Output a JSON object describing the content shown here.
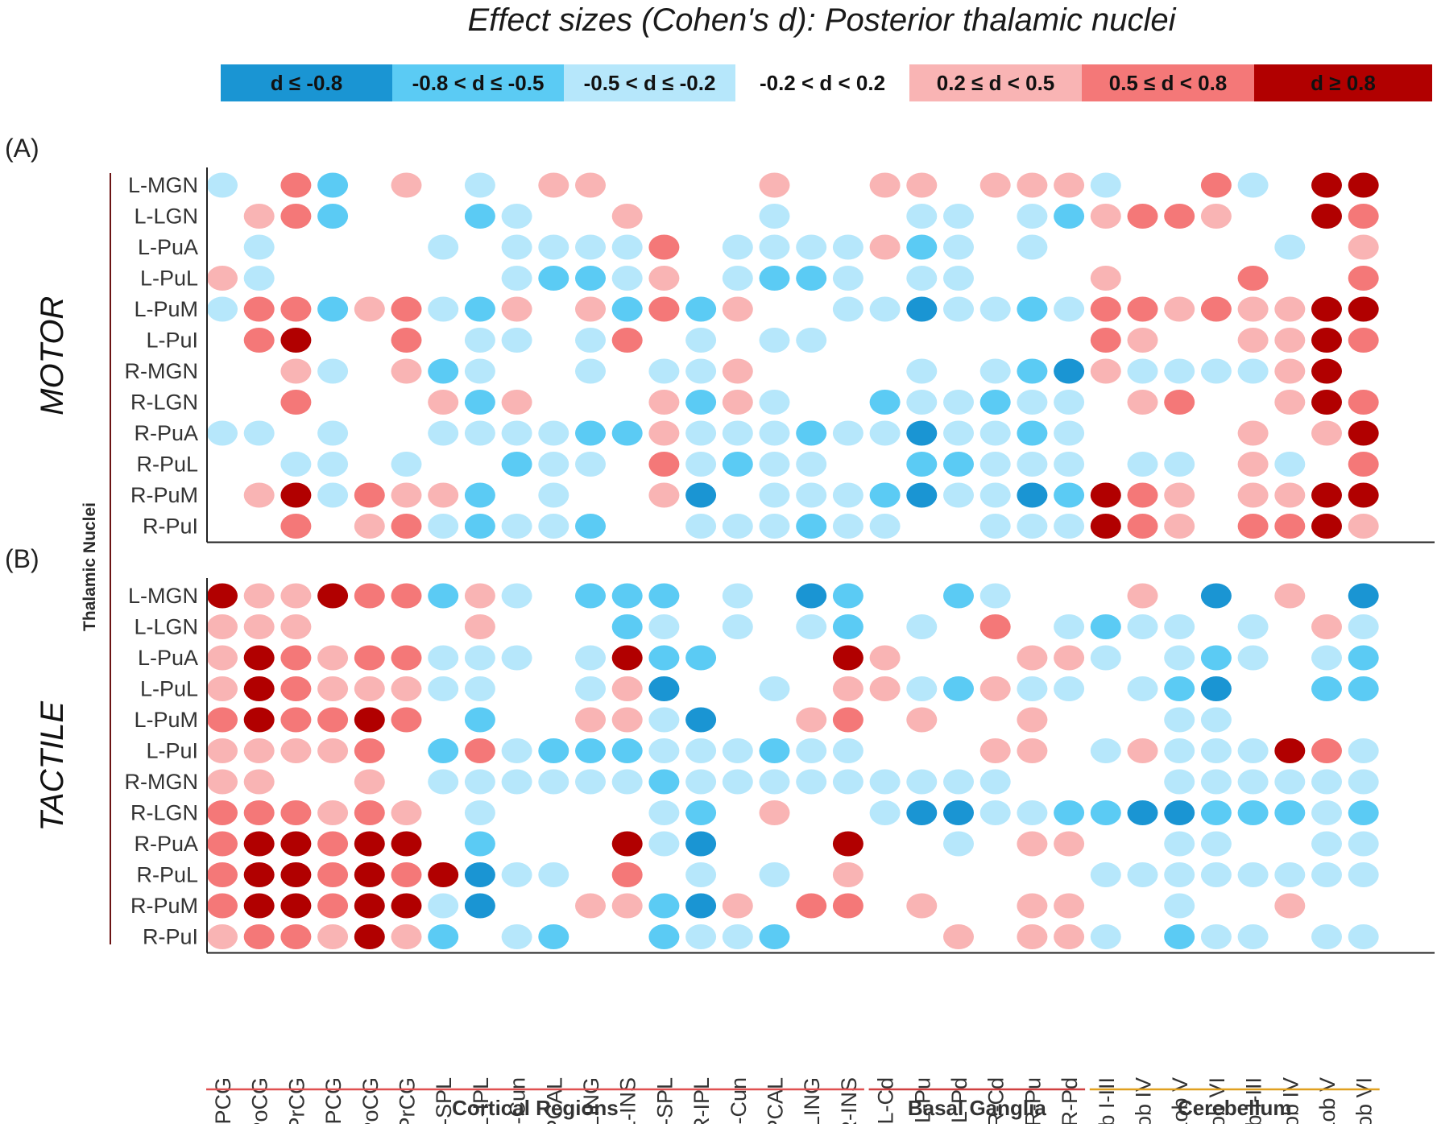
{
  "chart_data": {
    "type": "heatmap",
    "title": "Effect sizes (Cohen's d): Posterior thalamic nuclei",
    "y_axis_label": "Thalamic Nuclei",
    "legend": {
      "bins": [
        {
          "level": -3,
          "label": "d ≤ -0.8",
          "color": "#1a95d3"
        },
        {
          "level": -2,
          "label": "-0.8 < d ≤ -0.5",
          "color": "#5bcbf4"
        },
        {
          "level": -1,
          "label": "-0.5 < d ≤ -0.2",
          "color": "#b6e7fb"
        },
        {
          "level": 0,
          "label": "-0.2 < d < 0.2",
          "color": "#ffffff"
        },
        {
          "level": 1,
          "label": "0.2 ≤ d < 0.5",
          "color": "#f9b4b4"
        },
        {
          "level": 2,
          "label": "0.5 ≤ d < 0.8",
          "color": "#f47878"
        },
        {
          "level": 3,
          "label": "d ≥ 0.8",
          "color": "#b10000"
        }
      ]
    },
    "rows": [
      "L-MGN",
      "L-LGN",
      "L-PuA",
      "L-PuL",
      "L-PuM",
      "L-PuI",
      "R-MGN",
      "R-LGN",
      "R-PuA",
      "R-PuL",
      "R-PuM",
      "R-PuI"
    ],
    "columns": [
      "L-PCG",
      "L-PoCG",
      "L-PrCG",
      "R-PCG",
      "R-PoCG",
      "R-PrCG",
      "L-SPL",
      "L-IPL",
      "L-Cun",
      "L-PCAL",
      "L-LING",
      "L-INS",
      "R-SPL",
      "R-IPL",
      "R-Cun",
      "R-PCAL",
      "R-LING",
      "R-INS",
      "L-Cd",
      "L-Pu",
      "L-Pd",
      "R-Cd",
      "R-Pu",
      "R-Pd",
      "L-Lob I-III",
      "L-Lob IV",
      "L-Lob V",
      "L-Lob VI",
      "R-Lob I-III",
      "R-Lob IV",
      "R-Lob V",
      "R-Lob VI"
    ],
    "column_groups": [
      {
        "label": "Cortical Regions",
        "start": 0,
        "end": 17,
        "color": "#e05050"
      },
      {
        "label": "Basal Ganglia",
        "start": 18,
        "end": 23,
        "color": "#d04040"
      },
      {
        "label": "Cerebellum",
        "start": 24,
        "end": 31,
        "color": "#e0a020"
      }
    ],
    "panels": [
      {
        "tag": "(A)",
        "condition": "MOTOR",
        "levels": [
          [
            -1,
            0,
            2,
            -2,
            0,
            1,
            0,
            -1,
            0,
            1,
            1,
            0,
            0,
            0,
            0,
            1,
            0,
            0,
            1,
            1,
            0,
            1,
            1,
            1,
            -1,
            0,
            0,
            2,
            -1,
            0,
            3,
            3
          ],
          [
            0,
            1,
            2,
            -2,
            0,
            0,
            0,
            -2,
            -1,
            0,
            0,
            1,
            0,
            0,
            0,
            -1,
            0,
            0,
            0,
            -1,
            -1,
            0,
            -1,
            -2,
            1,
            2,
            2,
            1,
            0,
            0,
            3,
            2
          ],
          [
            0,
            -1,
            0,
            0,
            0,
            0,
            -1,
            0,
            -1,
            -1,
            -1,
            -1,
            2,
            0,
            -1,
            -1,
            -1,
            -1,
            1,
            -2,
            -1,
            0,
            -1,
            0,
            0,
            0,
            0,
            0,
            0,
            -1,
            0,
            1
          ],
          [
            1,
            -1,
            0,
            0,
            0,
            0,
            0,
            0,
            -1,
            -2,
            -2,
            -1,
            1,
            0,
            -1,
            -2,
            -2,
            -1,
            0,
            -1,
            -1,
            0,
            0,
            0,
            1,
            0,
            0,
            0,
            2,
            0,
            0,
            2
          ],
          [
            -1,
            2,
            2,
            -2,
            1,
            2,
            -1,
            -2,
            1,
            0,
            1,
            -2,
            2,
            -2,
            1,
            0,
            0,
            -1,
            -1,
            -3,
            -1,
            -1,
            -2,
            -1,
            2,
            2,
            1,
            2,
            1,
            1,
            3,
            3
          ],
          [
            0,
            2,
            3,
            0,
            0,
            2,
            0,
            -1,
            -1,
            0,
            -1,
            2,
            0,
            -1,
            0,
            -1,
            -1,
            0,
            0,
            0,
            0,
            0,
            0,
            0,
            2,
            1,
            0,
            0,
            1,
            1,
            3,
            2
          ],
          [
            0,
            0,
            1,
            -1,
            0,
            1,
            -2,
            -1,
            0,
            0,
            -1,
            0,
            -1,
            -1,
            1,
            0,
            0,
            0,
            0,
            -1,
            0,
            -1,
            -2,
            -3,
            1,
            -1,
            -1,
            -1,
            -1,
            1,
            3,
            0
          ],
          [
            0,
            0,
            2,
            0,
            0,
            0,
            1,
            -2,
            1,
            0,
            0,
            0,
            1,
            -2,
            1,
            -1,
            0,
            0,
            -2,
            -1,
            -1,
            -2,
            -1,
            -1,
            0,
            1,
            2,
            0,
            0,
            1,
            3,
            2
          ],
          [
            -1,
            -1,
            0,
            -1,
            0,
            0,
            -1,
            -1,
            -1,
            -1,
            -2,
            -2,
            1,
            -1,
            -1,
            -1,
            -2,
            -1,
            -1,
            -3,
            -1,
            -1,
            -2,
            -1,
            0,
            0,
            0,
            0,
            1,
            0,
            1,
            3
          ],
          [
            0,
            0,
            -1,
            -1,
            0,
            -1,
            0,
            0,
            -2,
            -1,
            -1,
            0,
            2,
            -1,
            -2,
            -1,
            -1,
            0,
            0,
            -2,
            -2,
            -1,
            -1,
            -1,
            0,
            -1,
            -1,
            0,
            1,
            -1,
            0,
            2
          ],
          [
            0,
            1,
            3,
            -1,
            2,
            1,
            1,
            -2,
            0,
            -1,
            0,
            0,
            1,
            -3,
            0,
            -1,
            -1,
            -1,
            -2,
            -3,
            -1,
            -1,
            -3,
            -2,
            3,
            2,
            1,
            0,
            1,
            1,
            3,
            3
          ],
          [
            0,
            0,
            2,
            0,
            1,
            2,
            -1,
            -2,
            -1,
            -1,
            -2,
            0,
            0,
            -1,
            -1,
            -1,
            -2,
            -1,
            -1,
            0,
            0,
            -1,
            -1,
            -1,
            3,
            2,
            1,
            0,
            2,
            2,
            3,
            1
          ]
        ]
      },
      {
        "tag": "(B)",
        "condition": "TACTILE",
        "levels": [
          [
            3,
            1,
            1,
            3,
            2,
            2,
            -2,
            1,
            -1,
            0,
            -2,
            -2,
            -2,
            0,
            -1,
            0,
            -3,
            -2,
            0,
            0,
            -2,
            -1,
            0,
            0,
            0,
            1,
            0,
            -3,
            0,
            1,
            0,
            -3
          ],
          [
            1,
            1,
            1,
            0,
            0,
            0,
            0,
            1,
            0,
            0,
            0,
            -2,
            -1,
            0,
            -1,
            0,
            -1,
            -2,
            0,
            -1,
            0,
            2,
            0,
            -1,
            -2,
            -1,
            -1,
            0,
            -1,
            0,
            1,
            -1
          ],
          [
            1,
            3,
            2,
            1,
            2,
            2,
            -1,
            -1,
            -1,
            0,
            -1,
            3,
            -2,
            -2,
            0,
            0,
            0,
            3,
            1,
            0,
            0,
            0,
            1,
            1,
            -1,
            0,
            -1,
            -2,
            -1,
            0,
            -1,
            -2
          ],
          [
            1,
            3,
            2,
            1,
            1,
            1,
            -1,
            -1,
            0,
            0,
            -1,
            1,
            -3,
            0,
            0,
            -1,
            0,
            1,
            1,
            -1,
            -2,
            1,
            -1,
            -1,
            0,
            -1,
            -2,
            -3,
            0,
            0,
            -2,
            -2
          ],
          [
            2,
            3,
            2,
            2,
            3,
            2,
            0,
            -2,
            0,
            0,
            1,
            1,
            -1,
            -3,
            0,
            0,
            1,
            2,
            0,
            1,
            0,
            0,
            1,
            0,
            0,
            0,
            -1,
            -1,
            0,
            0,
            0,
            0
          ],
          [
            1,
            1,
            1,
            1,
            2,
            0,
            -2,
            2,
            -1,
            -2,
            -2,
            -2,
            -1,
            -1,
            -1,
            -2,
            -1,
            -1,
            0,
            0,
            0,
            1,
            1,
            0,
            -1,
            1,
            -1,
            -1,
            -1,
            3,
            2,
            -1
          ],
          [
            1,
            1,
            0,
            0,
            1,
            0,
            -1,
            -1,
            -1,
            -1,
            -1,
            -1,
            -2,
            -1,
            -1,
            -1,
            -1,
            -1,
            -1,
            -1,
            -1,
            -1,
            0,
            0,
            0,
            0,
            -1,
            -1,
            -1,
            -1,
            -1,
            -1
          ],
          [
            2,
            2,
            2,
            1,
            2,
            1,
            0,
            -1,
            0,
            0,
            0,
            0,
            -1,
            -2,
            0,
            1,
            0,
            0,
            -1,
            -3,
            -3,
            -1,
            -1,
            -2,
            -2,
            -3,
            -3,
            -2,
            -2,
            -2,
            -1,
            -2
          ],
          [
            2,
            3,
            3,
            2,
            3,
            3,
            0,
            -2,
            0,
            0,
            0,
            3,
            -1,
            -3,
            0,
            0,
            0,
            3,
            0,
            0,
            -1,
            0,
            1,
            1,
            0,
            0,
            -1,
            -1,
            0,
            0,
            -1,
            -1
          ],
          [
            2,
            3,
            3,
            2,
            3,
            2,
            3,
            -3,
            -1,
            -1,
            0,
            2,
            0,
            -1,
            0,
            -1,
            0,
            1,
            0,
            0,
            0,
            0,
            0,
            0,
            -1,
            -1,
            -1,
            -1,
            -1,
            -1,
            -1,
            -1
          ],
          [
            2,
            3,
            3,
            2,
            3,
            3,
            -1,
            -3,
            0,
            0,
            1,
            1,
            -2,
            -3,
            1,
            0,
            2,
            2,
            0,
            1,
            0,
            0,
            1,
            1,
            0,
            0,
            -1,
            0,
            0,
            1,
            0,
            0
          ],
          [
            1,
            2,
            2,
            1,
            3,
            1,
            -2,
            0,
            -1,
            -2,
            0,
            0,
            -2,
            -1,
            -1,
            -2,
            0,
            0,
            0,
            0,
            1,
            0,
            1,
            1,
            -1,
            0,
            -2,
            -1,
            -1,
            0,
            -1,
            -1
          ]
        ]
      }
    ]
  }
}
